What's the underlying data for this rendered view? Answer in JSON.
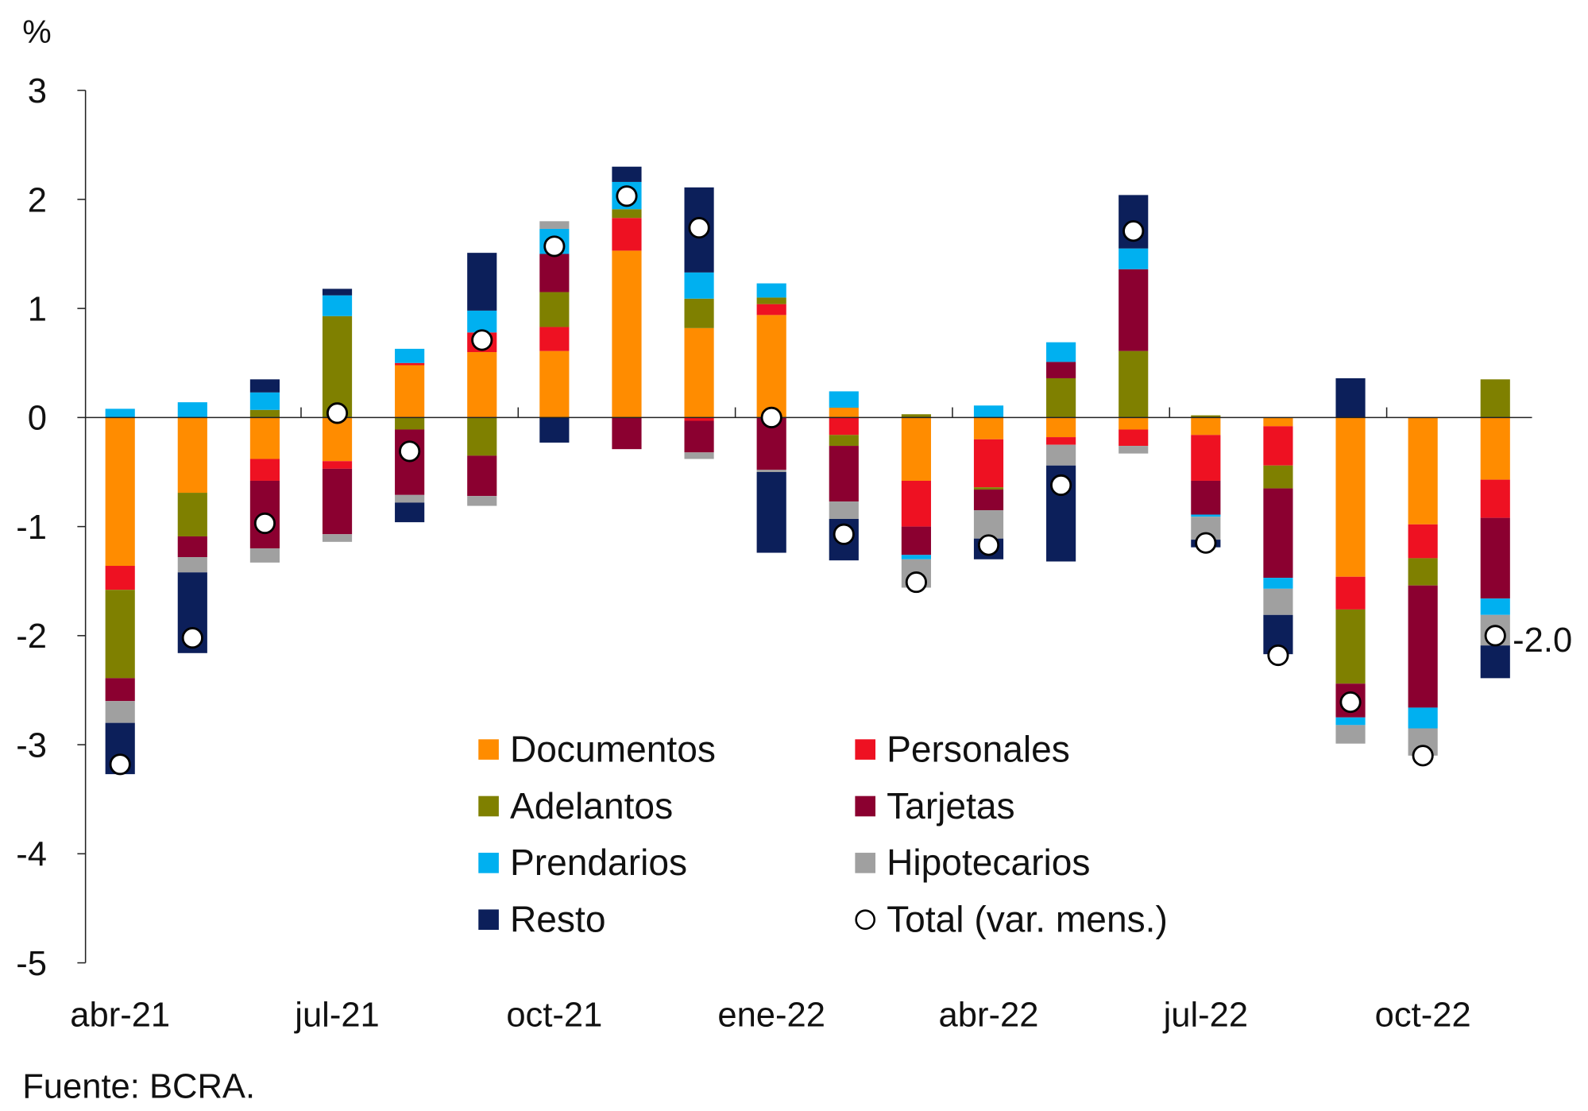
{
  "chart_data": {
    "type": "bar",
    "stacked": true,
    "ylabel": "%",
    "ylim": [
      -5,
      3
    ],
    "yticks": [
      "3",
      "2",
      "1",
      "0",
      "-1",
      "-2",
      "-3",
      "-4",
      "-5"
    ],
    "categories": [
      "abr-21",
      "may-21",
      "jun-21",
      "jul-21",
      "ago-21",
      "sep-21",
      "oct-21",
      "nov-21",
      "dic-21",
      "ene-22",
      "feb-22",
      "mar-22",
      "abr-22",
      "may-22",
      "jun-22",
      "jul-22",
      "ago-22",
      "sep-22",
      "oct-22",
      "nov-22"
    ],
    "xtick_labels": [
      {
        "label": "abr-21",
        "index": 0
      },
      {
        "label": "jul-21",
        "index": 3
      },
      {
        "label": "oct-21",
        "index": 6
      },
      {
        "label": "ene-22",
        "index": 9
      },
      {
        "label": "abr-22",
        "index": 12
      },
      {
        "label": "jul-22",
        "index": 15
      },
      {
        "label": "oct-22",
        "index": 18
      }
    ],
    "series": [
      {
        "name": "Documentos",
        "color": "#FF8C00",
        "values": [
          -1.36,
          -0.69,
          -0.38,
          -0.4,
          0.48,
          0.6,
          0.61,
          1.53,
          0.82,
          0.94,
          0.09,
          -0.58,
          -0.2,
          -0.18,
          -0.11,
          -0.16,
          -0.08,
          -1.46,
          -0.98,
          -0.57
        ]
      },
      {
        "name": "Personales",
        "color": "#EE1122",
        "values": [
          -0.22,
          0,
          -0.2,
          -0.07,
          0.02,
          0.18,
          0.22,
          0.3,
          -0.03,
          0.1,
          -0.16,
          -0.42,
          -0.44,
          -0.07,
          -0.15,
          -0.42,
          -0.36,
          -0.3,
          -0.31,
          -0.35
        ]
      },
      {
        "name": "Adelantos",
        "color": "#7F8000",
        "values": [
          -0.81,
          -0.4,
          0.07,
          0.93,
          -0.11,
          -0.35,
          0.32,
          0.08,
          0.27,
          0.06,
          -0.1,
          0.03,
          -0.02,
          0.36,
          0.61,
          0.02,
          -0.21,
          -0.68,
          -0.25,
          0.35
        ]
      },
      {
        "name": "Tarjetas",
        "color": "#8B0030",
        "values": [
          -0.21,
          -0.19,
          -0.62,
          -0.6,
          -0.6,
          -0.37,
          0.35,
          -0.29,
          -0.29,
          -0.48,
          -0.51,
          -0.26,
          -0.19,
          0.15,
          0.75,
          -0.31,
          -0.82,
          -0.31,
          -1.12,
          -0.74
        ]
      },
      {
        "name": "Prendarios",
        "color": "#00B0F0",
        "values": [
          0.08,
          0.14,
          0.16,
          0.19,
          0.13,
          0.2,
          0.23,
          0.25,
          0.24,
          0.13,
          0.15,
          -0.04,
          0.11,
          0.18,
          0.19,
          -0.02,
          -0.1,
          -0.07,
          -0.19,
          -0.15
        ]
      },
      {
        "name": "Hipotecarios",
        "color": "#A0A0A0",
        "values": [
          -0.2,
          -0.14,
          -0.13,
          -0.07,
          -0.07,
          -0.09,
          0.07,
          0,
          -0.06,
          -0.02,
          -0.16,
          -0.26,
          -0.26,
          -0.19,
          -0.07,
          -0.21,
          -0.24,
          -0.17,
          -0.25,
          -0.28
        ]
      },
      {
        "name": "Resto",
        "color": "#0C1F5A",
        "values": [
          -0.47,
          -0.74,
          0.12,
          0.06,
          -0.18,
          0.53,
          -0.23,
          0.14,
          0.78,
          -0.74,
          -0.38,
          0,
          -0.19,
          -0.88,
          0.49,
          -0.07,
          -0.36,
          0.36,
          0,
          -0.3
        ]
      }
    ],
    "total": {
      "name": "Total (var. mens.)",
      "values": [
        -3.18,
        -2.02,
        -0.97,
        0.04,
        -0.31,
        0.71,
        1.57,
        2.03,
        1.74,
        0.0,
        -1.07,
        -1.51,
        -1.17,
        -0.62,
        1.71,
        -1.15,
        -2.18,
        -2.61,
        -3.1,
        -2.0
      ]
    },
    "annotations": [
      "-2.0"
    ],
    "legend_placement": "bottom-center",
    "grid": false
  },
  "source": "Fuente: BCRA."
}
